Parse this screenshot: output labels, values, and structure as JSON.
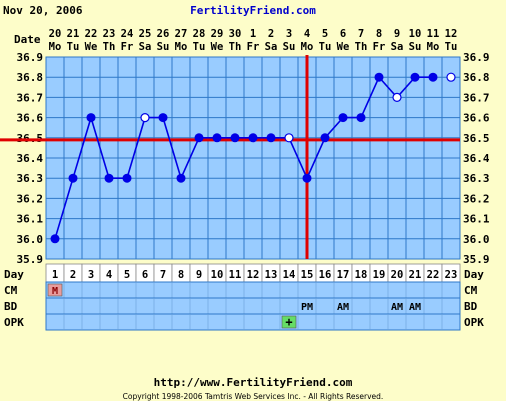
{
  "header": {
    "date": "Nov 20, 2006",
    "brand": "FertilityFriend.com"
  },
  "footer": {
    "url": "http://www.FertilityFriend.com",
    "copyright": "Copyright 1998-2006 Tamtris Web Services Inc. - All Rights Reserved."
  },
  "colors": {
    "background": "#fdfdc9",
    "plot_area": "#99ccff",
    "grid": "#2e78c8",
    "temp_line": "#0000e6",
    "coverline": "#e00000",
    "brand": "#0000cc",
    "menstruation": "#e89c9c",
    "opk_positive": "#66dd66"
  },
  "chart_data": {
    "type": "line",
    "title": "",
    "ylabel": "",
    "ylim": [
      35.9,
      36.9
    ],
    "yticks": [
      "35.9",
      "36.0",
      "36.1",
      "36.2",
      "36.3",
      "36.4",
      "36.5",
      "36.6",
      "36.7",
      "36.8",
      "36.9"
    ],
    "date_row_label": "Date",
    "cycle_day_label": "Day",
    "dates": [
      "20",
      "21",
      "22",
      "23",
      "24",
      "25",
      "26",
      "27",
      "28",
      "29",
      "30",
      "1",
      "2",
      "3",
      "4",
      "5",
      "6",
      "7",
      "8",
      "9",
      "10",
      "11",
      "12"
    ],
    "weekdays": [
      "Mo",
      "Tu",
      "We",
      "Th",
      "Fr",
      "Sa",
      "Su",
      "Mo",
      "Tu",
      "We",
      "Th",
      "Fr",
      "Sa",
      "Su",
      "Mo",
      "Tu",
      "We",
      "Th",
      "Fr",
      "Sa",
      "Su",
      "Mo",
      "Tu"
    ],
    "cycle_days": [
      "1",
      "2",
      "3",
      "4",
      "5",
      "6",
      "7",
      "8",
      "9",
      "10",
      "11",
      "12",
      "13",
      "14",
      "15",
      "16",
      "17",
      "18",
      "19",
      "20",
      "21",
      "22",
      "23"
    ],
    "series": [
      {
        "values": [
          36.0,
          36.3,
          36.6,
          36.3,
          36.3,
          36.6,
          36.6,
          36.3,
          36.5,
          36.5,
          36.5,
          36.5,
          36.5,
          36.5,
          36.3,
          36.5,
          36.6,
          36.6,
          36.8,
          36.7,
          36.8,
          36.8,
          36.8
        ],
        "open_points": [
          false,
          false,
          false,
          false,
          false,
          true,
          false,
          false,
          false,
          false,
          false,
          false,
          false,
          true,
          false,
          false,
          false,
          false,
          false,
          true,
          false,
          false,
          true
        ],
        "connected": [
          true,
          true,
          true,
          true,
          true,
          true,
          true,
          true,
          true,
          true,
          true,
          true,
          true,
          true,
          true,
          true,
          true,
          true,
          true,
          true,
          true,
          true,
          false
        ]
      }
    ],
    "coverline": 36.49,
    "ovulation_day": "15",
    "rows": [
      {
        "label": "CM",
        "entries": [
          {
            "day": "1",
            "text": "M",
            "highlight": "menstruation"
          }
        ]
      },
      {
        "label": "BD",
        "entries": [
          {
            "day": "15",
            "text": "PM"
          },
          {
            "day": "17",
            "text": "AM"
          },
          {
            "day": "20",
            "text": "AM"
          },
          {
            "day": "21",
            "text": "AM"
          }
        ]
      },
      {
        "label": "OPK",
        "entries": [
          {
            "day": "14",
            "text": "+",
            "highlight": "opk_positive"
          }
        ]
      }
    ]
  }
}
